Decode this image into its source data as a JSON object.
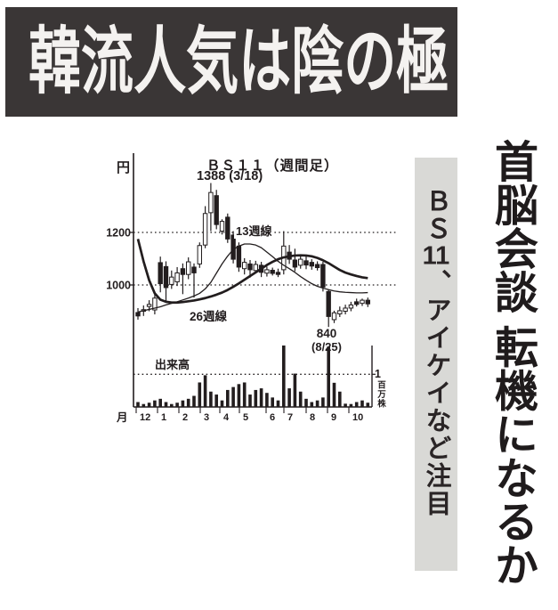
{
  "banner": {
    "title": "韓流人気は陰の極"
  },
  "headline": {
    "text": "首脳会談 転機になるか"
  },
  "sub_headline": {
    "prefix": "ＢＳ",
    "number": "11",
    "suffix": "、アイケイなど注目"
  },
  "colors": {
    "ink": "#221d1e",
    "banner_bg": "#3a3636",
    "banner_text": "#f4f2f0",
    "strip_bg": "#d9d9d6"
  },
  "chart_data": {
    "type": "candlestick",
    "title": "ＢＳ１１（週間足）",
    "y_unit": "円",
    "x_unit": "月",
    "volume_label": "出来高",
    "volume_axis_value": "1",
    "volume_axis_unit": "百万株",
    "annotations": {
      "peak": "1388 (3/18)",
      "low_line1": "840",
      "low_line2": "(8/25)",
      "ma13": "13週線",
      "ma26": "26週線"
    },
    "y_ticks": [
      1200,
      1000
    ],
    "y_range": [
      820,
      1420
    ],
    "months": [
      "12",
      "1",
      "2",
      "3",
      "4",
      "5",
      "6",
      "7",
      "8",
      "9",
      "10"
    ],
    "grid": "dotted",
    "volume_tick": 1,
    "candles": [
      [
        895,
        912,
        868,
        882
      ],
      [
        900,
        922,
        882,
        906
      ],
      [
        918,
        942,
        900,
        926
      ],
      [
        905,
        968,
        888,
        950
      ],
      [
        1085,
        1108,
        972,
        1005
      ],
      [
        1070,
        1090,
        938,
        990
      ],
      [
        1002,
        1055,
        985,
        1030
      ],
      [
        1012,
        1068,
        996,
        1046
      ],
      [
        1062,
        1082,
        965,
        1040
      ],
      [
        1040,
        1105,
        1022,
        1088
      ],
      [
        1068,
        1082,
        952,
        1046
      ],
      [
        1080,
        1162,
        1065,
        1150
      ],
      [
        1152,
        1300,
        1140,
        1272
      ],
      [
        1275,
        1388,
        1205,
        1352
      ],
      [
        1340,
        1362,
        1212,
        1230
      ],
      [
        1205,
        1250,
        1192,
        1242
      ],
      [
        1258,
        1272,
        1160,
        1175
      ],
      [
        1190,
        1205,
        1082,
        1098
      ],
      [
        1148,
        1162,
        1050,
        1068
      ],
      [
        1062,
        1102,
        1040,
        1086
      ],
      [
        1080,
        1095,
        1028,
        1058
      ],
      [
        1055,
        1092,
        1045,
        1078
      ],
      [
        1075,
        1088,
        1030,
        1048
      ],
      [
        1045,
        1070,
        1032,
        1058
      ],
      [
        1056,
        1066,
        1036,
        1044
      ],
      [
        1048,
        1062,
        1030,
        1040
      ],
      [
        1058,
        1205,
        1040,
        1148
      ],
      [
        1125,
        1152,
        1080,
        1098
      ],
      [
        1095,
        1138,
        1052,
        1068
      ],
      [
        1075,
        1115,
        1062,
        1098
      ],
      [
        1092,
        1110,
        1060,
        1076
      ],
      [
        1086,
        1098,
        1058,
        1072
      ],
      [
        1078,
        1090,
        1055,
        1066
      ],
      [
        1078,
        1088,
        975,
        992
      ],
      [
        975,
        982,
        840,
        880
      ],
      [
        868,
        902,
        855,
        894
      ],
      [
        890,
        918,
        878,
        902
      ],
      [
        900,
        925,
        888,
        912
      ],
      [
        912,
        936,
        900,
        924
      ],
      [
        936,
        948,
        918,
        926
      ],
      [
        930,
        948,
        920,
        942
      ],
      [
        942,
        952,
        916,
        928
      ]
    ],
    "ma13": [
      897,
      902,
      907,
      912,
      917,
      924,
      930,
      936,
      943,
      950,
      958,
      968,
      985,
      1010,
      1045,
      1080,
      1110,
      1135,
      1148,
      1156,
      1156,
      1152,
      1142,
      1125,
      1108,
      1090,
      1075,
      1062,
      1048,
      1032,
      1018,
      1005,
      995,
      988,
      982,
      977,
      974,
      972,
      971,
      970,
      970,
      971
    ],
    "ma26": [
      1175,
      1090,
      1018,
      968,
      944,
      936,
      933,
      933,
      935,
      938,
      941,
      945,
      950,
      956,
      963,
      971,
      981,
      993,
      1006,
      1020,
      1034,
      1048,
      1062,
      1076,
      1088,
      1098,
      1105,
      1109,
      1112,
      1113,
      1112,
      1109,
      1103,
      1094,
      1083,
      1070,
      1057,
      1047,
      1040,
      1034,
      1029,
      1026
    ],
    "volume": [
      0.15,
      0.09,
      0.13,
      0.2,
      0.25,
      0.15,
      0.09,
      0.13,
      0.2,
      0.25,
      0.34,
      0.75,
      0.97,
      0.47,
      0.38,
      0.2,
      0.52,
      0.61,
      0.7,
      0.75,
      0.38,
      0.52,
      0.57,
      0.43,
      0.29,
      0.2,
      1.88,
      0.57,
      1.02,
      0.47,
      0.25,
      0.15,
      0.2,
      0.29,
      1.85,
      0.74,
      0.47,
      0.1,
      0.09,
      0.15,
      0.2,
      0.13
    ]
  }
}
